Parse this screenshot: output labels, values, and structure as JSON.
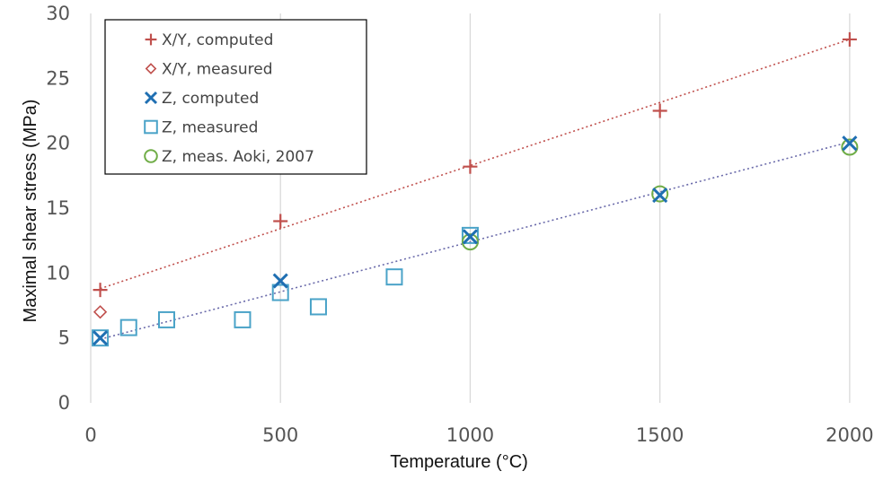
{
  "chart_data": {
    "type": "scatter",
    "title": "",
    "xlabel": "Temperature  (°C)",
    "ylabel": "Maximal shear stress (MPa)",
    "xlim": [
      0,
      2050
    ],
    "ylim": [
      0,
      30
    ],
    "xticks": [
      0,
      500,
      1000,
      1500,
      2000
    ],
    "yticks": [
      0,
      5,
      10,
      15,
      20,
      25,
      30
    ],
    "xtick_labels": [
      "0",
      "500",
      "1000",
      "1500",
      "2000"
    ],
    "ytick_labels": [
      "0",
      "5",
      "10",
      "15",
      "20",
      "25",
      "30"
    ],
    "grid": "vertical",
    "legend_position": "top-left",
    "series": [
      {
        "name": "X/Y, computed",
        "marker": "plus",
        "color": "#c0504d",
        "x": [
          25,
          500,
          1000,
          1500,
          2000
        ],
        "y": [
          8.7,
          14.0,
          18.2,
          22.5,
          28.0
        ]
      },
      {
        "name": "X/Y, measured",
        "marker": "diamond",
        "color": "#c0504d",
        "x": [
          25
        ],
        "y": [
          7.0
        ]
      },
      {
        "name": "Z, computed",
        "marker": "x",
        "color": "#1f6fb2",
        "x": [
          25,
          500,
          1000,
          1500,
          2000
        ],
        "y": [
          5.0,
          9.4,
          12.8,
          16.0,
          20.0
        ]
      },
      {
        "name": "Z, measured",
        "marker": "square",
        "color": "#4aa3c8",
        "x": [
          25,
          100,
          200,
          400,
          500,
          600,
          800,
          1000
        ],
        "y": [
          5.0,
          5.8,
          6.4,
          6.4,
          8.5,
          7.4,
          9.7,
          12.9
        ]
      },
      {
        "name": "Z, meas. Aoki, 2007",
        "marker": "circle",
        "color": "#70ad47",
        "x": [
          1000,
          1500,
          2000
        ],
        "y": [
          12.4,
          16.1,
          19.7
        ]
      }
    ],
    "trendlines": [
      {
        "color": "#c0504d",
        "x": [
          25,
          2000
        ],
        "y": [
          8.8,
          28.0
        ]
      },
      {
        "color": "#6a6aaa",
        "x": [
          25,
          2000
        ],
        "y": [
          4.9,
          20.1
        ]
      }
    ]
  }
}
